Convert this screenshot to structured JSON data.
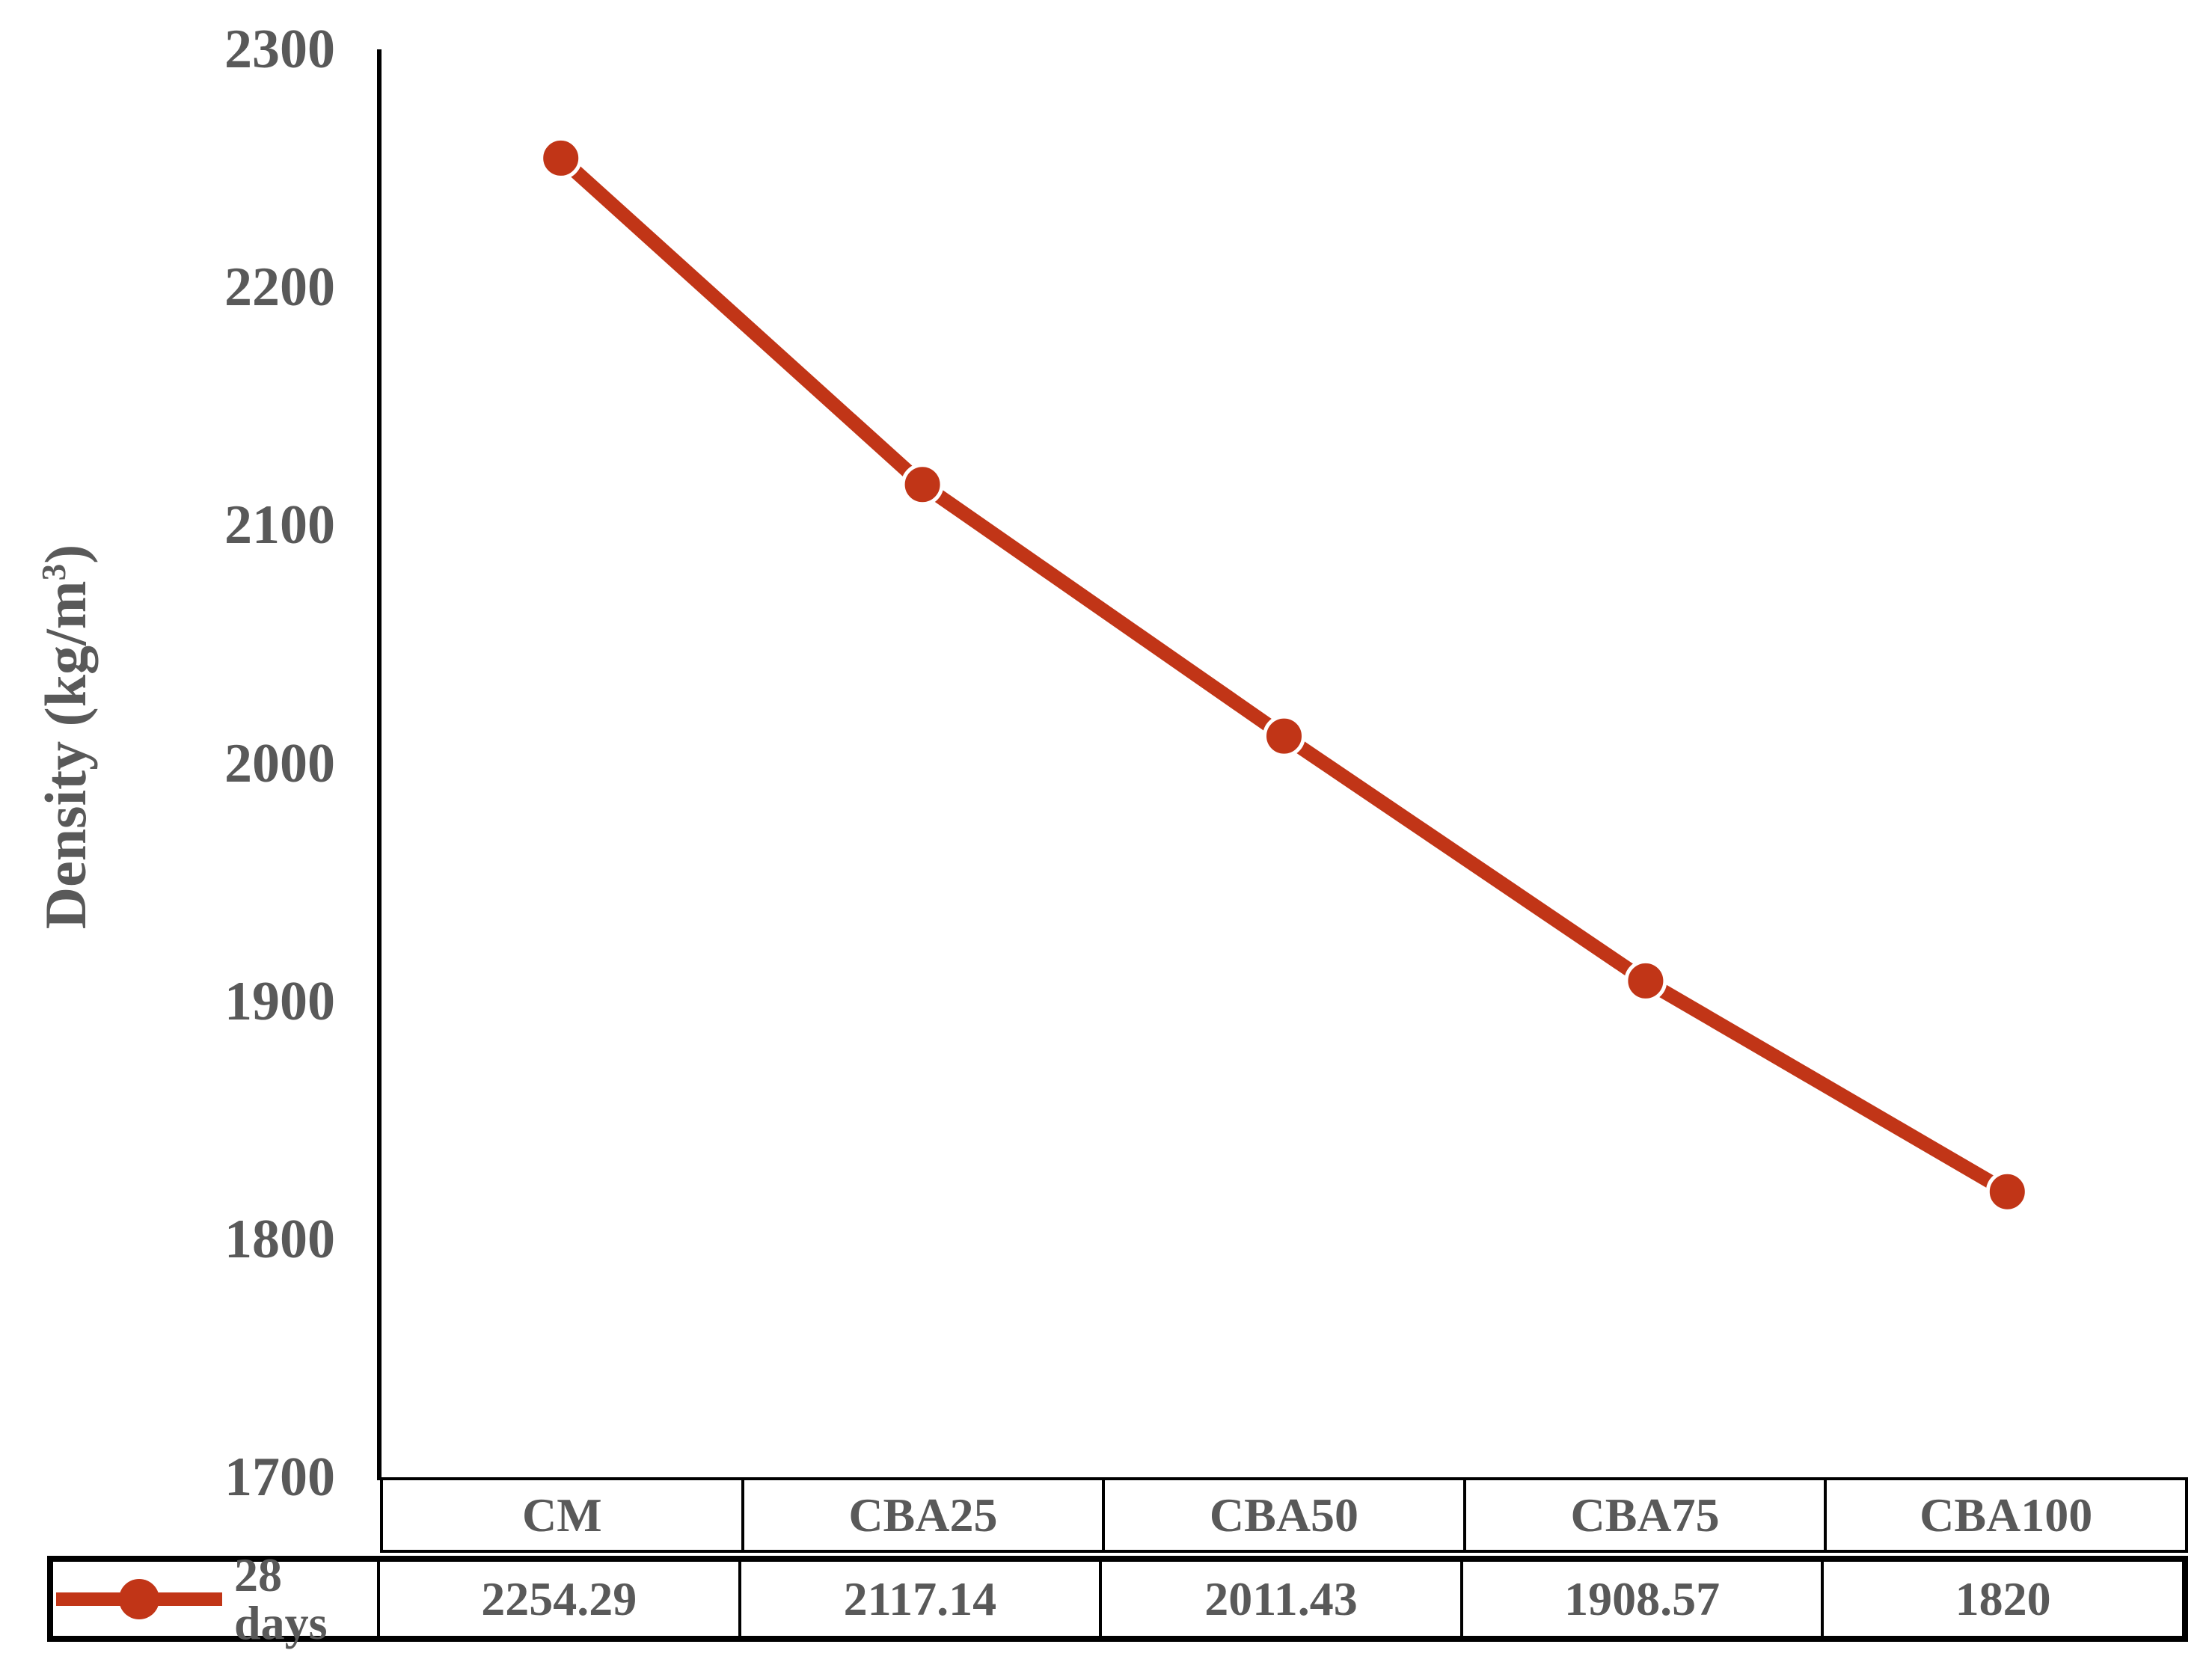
{
  "figure": {
    "y_axis_title": {
      "text": "Density (kg/m",
      "sup": "3",
      "suffix": ")"
    }
  },
  "chart_data": {
    "type": "line",
    "title": "",
    "ylabel": "Density (kg/m³)",
    "xlabel": "",
    "categories": [
      "CM",
      "CBA25",
      "CBA50",
      "CBA75",
      "CBA100"
    ],
    "series": [
      {
        "name": "28 days",
        "values": [
          2254.29,
          2117.14,
          2011.43,
          1908.57,
          1820
        ],
        "values_display": [
          "2254.29",
          "2117.14",
          "2011.43",
          "1908.57",
          "1820"
        ]
      }
    ],
    "ylim": [
      1700,
      2300
    ],
    "y_ticks": [
      2300,
      2200,
      2100,
      2000,
      1900,
      1800,
      1700
    ],
    "grid": false,
    "legend_position": "data-table-left",
    "marker": "circle",
    "colors": {
      "series": "#C13517",
      "axis": "#000000",
      "text": "#595959"
    }
  }
}
